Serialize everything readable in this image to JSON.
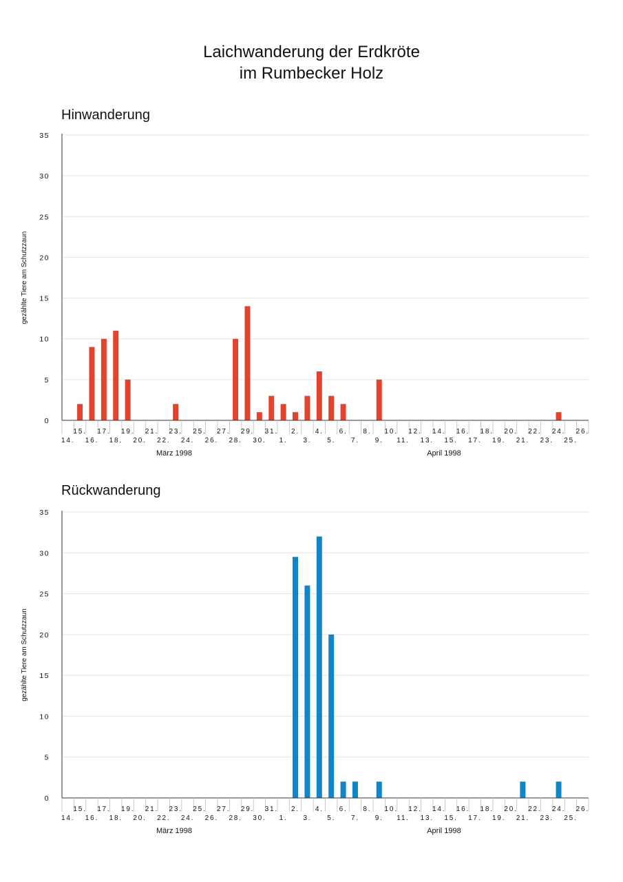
{
  "title_line1": "Laichwanderung der Erdkröte",
  "title_line2": "im Rumbecker Holz",
  "chart_data": [
    {
      "type": "bar",
      "title": "Hinwanderung",
      "ylabel": "gezählte Tiere am Schutzzaun",
      "ylim": [
        0,
        35
      ],
      "yticks": [
        0,
        5,
        10,
        15,
        20,
        25,
        30,
        35
      ],
      "color": "#e2432c",
      "grid": true,
      "months": [
        "März 1998",
        "April 1998"
      ],
      "categories": [
        "14.",
        "15.",
        "16.",
        "17.",
        "18.",
        "19.",
        "20.",
        "21.",
        "22.",
        "23.",
        "24.",
        "25.",
        "26.",
        "27.",
        "28.",
        "29.",
        "30.",
        "31.",
        "1.",
        "2.",
        "3.",
        "4.",
        "5.",
        "6.",
        "7.",
        "8.",
        "9.",
        "10.",
        "11.",
        "12.",
        "13.",
        "14.",
        "15.",
        "16.",
        "17.",
        "18.",
        "19.",
        "20.",
        "21.",
        "22.",
        "23.",
        "24.",
        "25.",
        "26."
      ],
      "values": [
        0,
        2,
        9,
        10,
        11,
        5,
        0,
        0,
        0,
        2,
        0,
        0,
        0,
        0,
        10,
        14,
        1,
        3,
        2,
        1,
        3,
        6,
        3,
        2,
        0,
        0,
        5,
        0,
        0,
        0,
        0,
        0,
        0,
        0,
        0,
        0,
        0,
        0,
        0,
        0,
        0,
        1,
        0,
        0
      ]
    },
    {
      "type": "bar",
      "title": "Rückwanderung",
      "ylabel": "gezählte Tiere am Schutzzaun",
      "ylim": [
        0,
        35
      ],
      "yticks": [
        0,
        5,
        10,
        15,
        20,
        25,
        30,
        35
      ],
      "color": "#1285c8",
      "grid": true,
      "months": [
        "März 1998",
        "April 1998"
      ],
      "categories": [
        "14.",
        "15.",
        "16.",
        "17.",
        "18.",
        "19.",
        "20.",
        "21.",
        "22.",
        "23.",
        "24.",
        "25.",
        "26.",
        "27.",
        "28.",
        "29.",
        "30.",
        "31.",
        "1.",
        "2.",
        "3.",
        "4.",
        "5.",
        "6.",
        "7.",
        "8.",
        "9.",
        "10.",
        "11.",
        "12.",
        "13.",
        "14.",
        "15.",
        "16.",
        "17.",
        "18.",
        "19.",
        "20.",
        "21.",
        "22.",
        "23.",
        "24.",
        "25.",
        "26."
      ],
      "values": [
        0,
        0,
        0,
        0,
        0,
        0,
        0,
        0,
        0,
        0,
        0,
        0,
        0,
        0,
        0,
        0,
        0,
        0,
        0,
        29.5,
        26,
        32,
        20,
        2,
        2,
        0,
        2,
        0,
        0,
        0,
        0,
        0,
        0,
        0,
        0,
        0,
        0,
        0,
        2,
        0,
        0,
        2,
        0,
        0
      ]
    }
  ]
}
